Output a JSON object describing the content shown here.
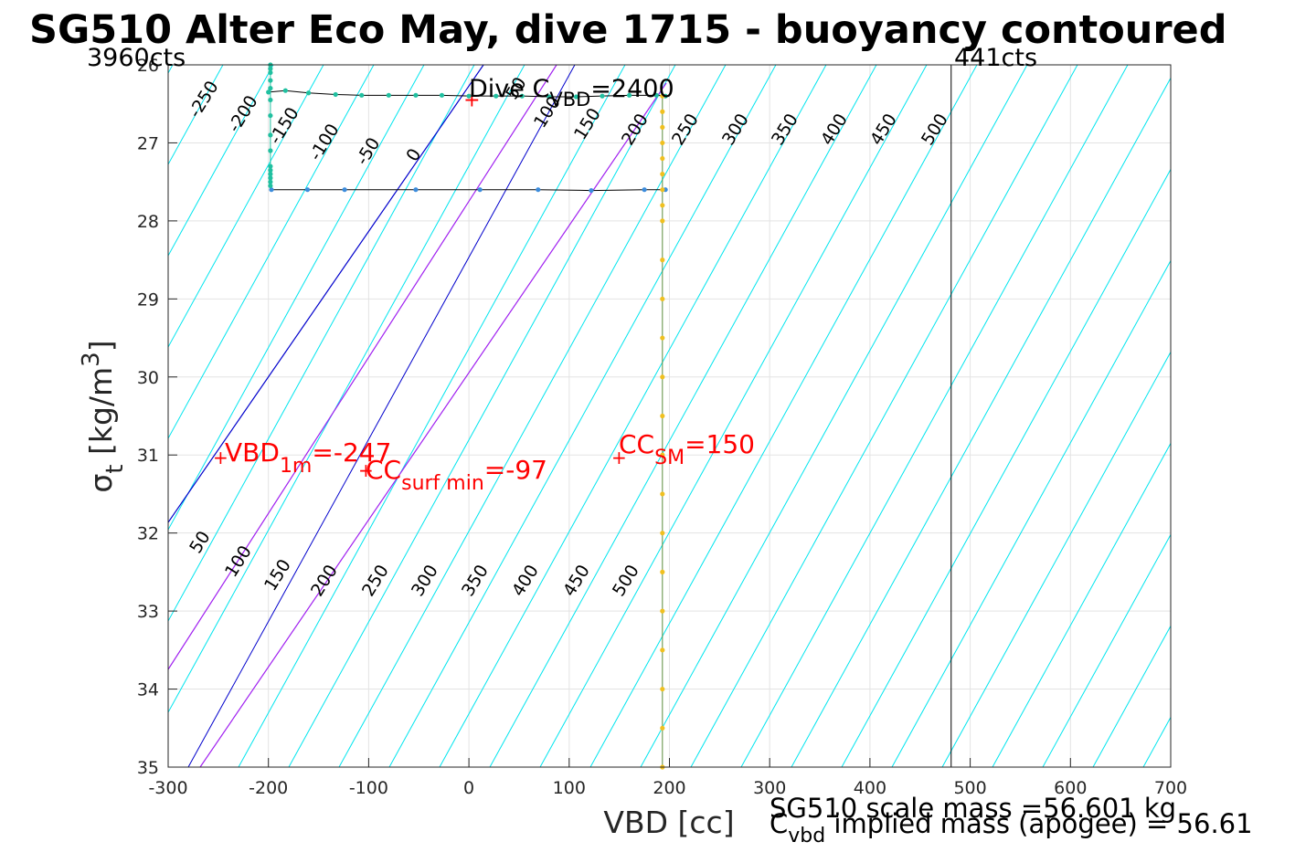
{
  "chart_data": {
    "type": "contour",
    "title": "SG510 Alter Eco May, dive 1715 - buoyancy contoured",
    "xlabel": "VBD [cc]",
    "ylabel": "σ_t [kg/m^3]",
    "xlim": [
      -300,
      700
    ],
    "ylim": [
      35,
      26
    ],
    "x_ticks": [
      -300,
      -200,
      -100,
      0,
      100,
      200,
      300,
      400,
      500,
      600,
      700
    ],
    "y_ticks": [
      26,
      27,
      28,
      29,
      30,
      31,
      32,
      33,
      34,
      35
    ],
    "grid": true,
    "counts_labels": {
      "min": "3960cts",
      "max": "441cts"
    },
    "counts_line_x": 481,
    "contour_levels_upper": [
      "-250",
      "-200",
      "-150",
      "-100",
      "-50",
      "0",
      "50",
      "100",
      "150",
      "200",
      "250",
      "300",
      "350",
      "400",
      "450",
      "500"
    ],
    "contour_levels_lower": [
      "50",
      "100",
      "150",
      "200",
      "250",
      "300",
      "350",
      "400",
      "450",
      "500"
    ],
    "colors": {
      "contour": "#00e5ee",
      "zero_line": "#0000cc",
      "purple_line": "#a020f0",
      "annotation": "#ff0000",
      "dive": "#3c8cdc",
      "climb": "#20c0a0",
      "apogee": "#f0c020"
    },
    "annotations": {
      "dive_c_vbd": {
        "prefix": "Dive C",
        "sub": "VBD",
        "suffix": "=2400"
      },
      "vbd_1m": {
        "prefix": "VBD",
        "sub": "1m",
        "suffix": "=-247",
        "x": -247,
        "y": 31.05
      },
      "cc_surf_min": {
        "prefix": "CC",
        "sub": "surf min",
        "suffix": "=-97",
        "x": -97,
        "y": 31.2
      },
      "cc_sm": {
        "prefix": "CC",
        "sub": "SM",
        "suffix": "=150",
        "x": 150,
        "y": 31.05
      }
    },
    "footer": {
      "scale_mass": "SG510 scale mass =56.601 kg",
      "implied_prefix": "C",
      "implied_sub": "vbd",
      "implied_suffix": " implied mass (apogee) = 56.61"
    },
    "series": [
      {
        "role": "dive-upper",
        "points": [
          [
            -200,
            26.35
          ],
          [
            -183,
            26.33
          ],
          [
            -160,
            26.36
          ],
          [
            -133,
            26.38
          ],
          [
            -107,
            26.39
          ],
          [
            -80,
            26.39
          ],
          [
            -53,
            26.39
          ],
          [
            -27,
            26.39
          ],
          [
            0,
            26.4
          ],
          [
            27,
            26.4
          ],
          [
            53,
            26.4
          ],
          [
            80,
            26.41
          ],
          [
            107,
            26.41
          ],
          [
            133,
            26.4
          ],
          [
            160,
            26.39
          ],
          [
            187,
            26.39
          ],
          [
            196,
            26.4
          ]
        ]
      },
      {
        "role": "dive-lower",
        "points": [
          [
            -197,
            27.6
          ],
          [
            -161,
            27.6
          ],
          [
            -124,
            27.6
          ],
          [
            -53,
            27.6
          ],
          [
            11,
            27.6
          ],
          [
            69,
            27.6
          ],
          [
            122,
            27.61
          ],
          [
            175,
            27.6
          ],
          [
            196,
            27.6
          ]
        ]
      },
      {
        "role": "left-vertical",
        "points": [
          [
            -198,
            26.0
          ],
          [
            -198,
            26.05
          ],
          [
            -198,
            26.1
          ],
          [
            -198,
            26.2
          ],
          [
            -198,
            26.3
          ],
          [
            -198,
            26.45
          ],
          [
            -198,
            26.65
          ],
          [
            -198,
            26.9
          ],
          [
            -198,
            27.1
          ],
          [
            -198,
            27.3
          ],
          [
            -198,
            27.35
          ],
          [
            -198,
            27.4
          ],
          [
            -198,
            27.45
          ],
          [
            -198,
            27.5
          ],
          [
            -198,
            27.55
          ]
        ]
      },
      {
        "role": "right-vertical",
        "points": [
          [
            193,
            26.4
          ],
          [
            193,
            26.6
          ],
          [
            193,
            26.8
          ],
          [
            193,
            27.0
          ],
          [
            193,
            27.2
          ],
          [
            193,
            27.4
          ],
          [
            193,
            27.6
          ],
          [
            193,
            27.8
          ],
          [
            193,
            28.0
          ],
          [
            193,
            28.5
          ],
          [
            193,
            29.0
          ],
          [
            193,
            29.5
          ],
          [
            193,
            30.0
          ],
          [
            193,
            30.5
          ],
          [
            193,
            31.0
          ],
          [
            193,
            31.5
          ],
          [
            193,
            32.0
          ],
          [
            193,
            32.5
          ],
          [
            193,
            33.0
          ],
          [
            193,
            33.5
          ],
          [
            193,
            34.0
          ],
          [
            193,
            34.5
          ],
          [
            193,
            35.0
          ]
        ]
      },
      {
        "role": "apogee",
        "points": [
          [
            0,
            26.45
          ]
        ]
      }
    ]
  }
}
